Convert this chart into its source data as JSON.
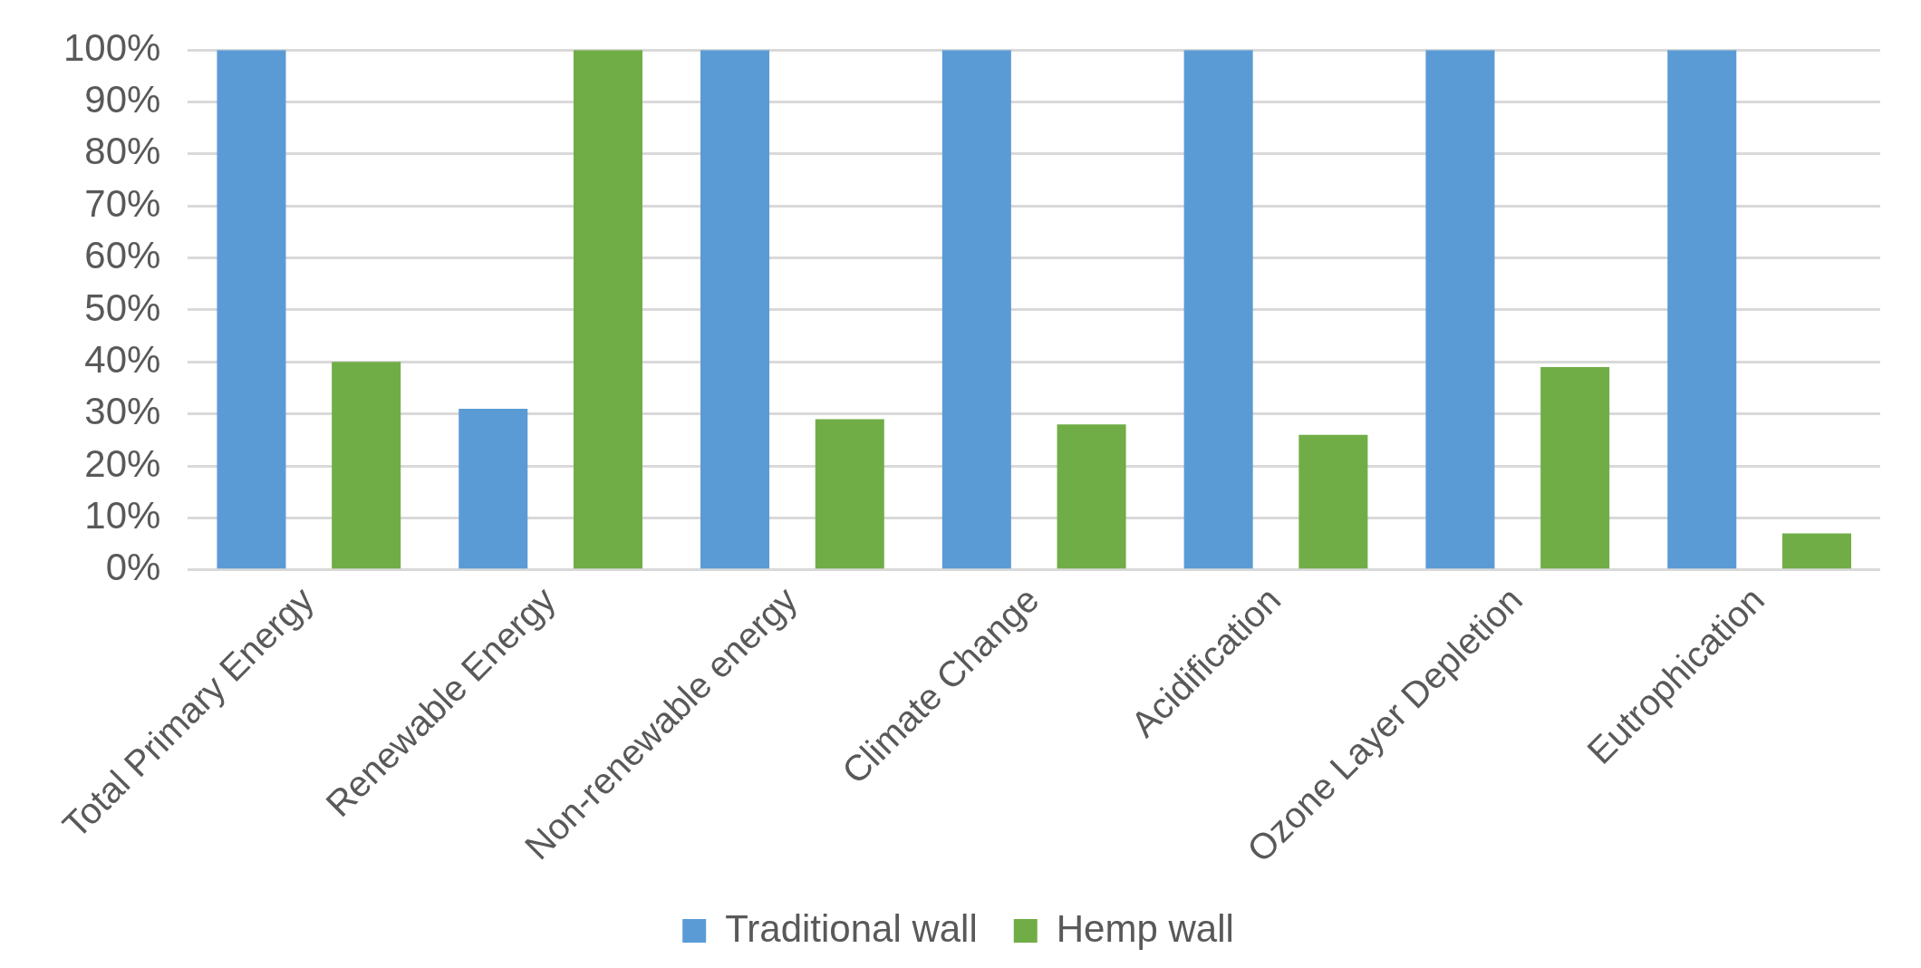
{
  "chart_data": {
    "type": "bar",
    "categories": [
      "Total Primary Energy",
      "Renewable Energy",
      "Non-renewable energy",
      "Climate Change",
      "Acidification",
      "Ozone Layer Depletion",
      "Eutrophication"
    ],
    "series": [
      {
        "name": "Traditional wall",
        "color": "#5b9bd5",
        "values": [
          100,
          31,
          100,
          100,
          100,
          100,
          100
        ]
      },
      {
        "name": "Hemp wall",
        "color": "#70ad47",
        "values": [
          40,
          100,
          29,
          28,
          26,
          39,
          7
        ]
      }
    ],
    "ylim": [
      0,
      100
    ],
    "yticks": [
      {
        "value": 0,
        "label": "0%"
      },
      {
        "value": 10,
        "label": "10%"
      },
      {
        "value": 20,
        "label": "20%"
      },
      {
        "value": 30,
        "label": "30%"
      },
      {
        "value": 40,
        "label": "40%"
      },
      {
        "value": 50,
        "label": "50%"
      },
      {
        "value": 60,
        "label": "60%"
      },
      {
        "value": 70,
        "label": "70%"
      },
      {
        "value": 80,
        "label": "80%"
      },
      {
        "value": 90,
        "label": "90%"
      },
      {
        "value": 100,
        "label": "100%"
      }
    ],
    "grid": "y",
    "legend": "bottom"
  }
}
